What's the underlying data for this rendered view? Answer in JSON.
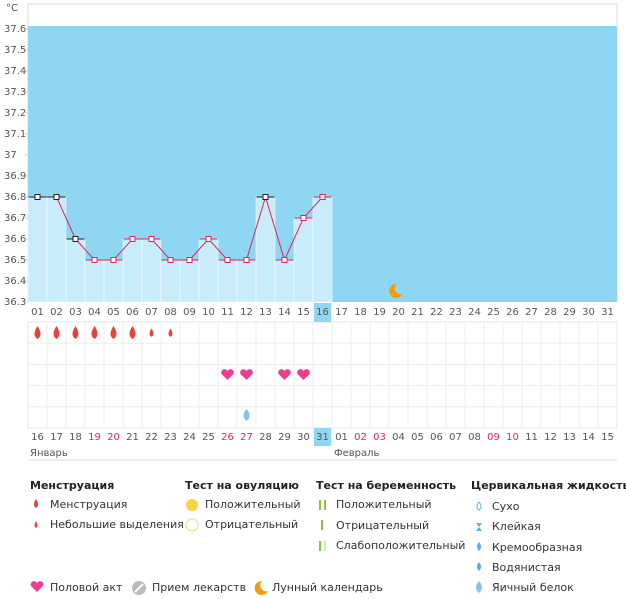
{
  "chart_data": {
    "type": "bar",
    "unit": "°C",
    "categories": [
      "01",
      "02",
      "03",
      "04",
      "05",
      "06",
      "07",
      "08",
      "09",
      "10",
      "11",
      "12",
      "13",
      "14",
      "15",
      "16",
      "17",
      "18",
      "19",
      "20",
      "21",
      "22",
      "23",
      "24",
      "25",
      "26",
      "27",
      "28",
      "29",
      "30",
      "31"
    ],
    "values": [
      36.8,
      36.8,
      36.6,
      36.5,
      36.5,
      36.6,
      36.6,
      36.5,
      36.5,
      36.6,
      36.5,
      36.5,
      36.8,
      36.5,
      36.7,
      36.8,
      null,
      null,
      null,
      null,
      null,
      null,
      null,
      null,
      null,
      null,
      null,
      null,
      null,
      null,
      null
    ],
    "marker_colors": [
      "#222",
      "#222",
      "#222",
      "#e0245e",
      "#e0245e",
      "#e0245e",
      "#e0245e",
      "#e0245e",
      "#e0245e",
      "#e0245e",
      "#e0245e",
      "#e0245e",
      "#222",
      "#e0245e",
      "#e0245e",
      "#e0245e",
      null,
      null,
      null,
      null,
      null,
      null,
      null,
      null,
      null,
      null,
      null,
      null,
      null,
      null,
      null
    ],
    "bar_color": "#c9ecfb",
    "background_color": "#8fd6f2",
    "line_color": "#e0245e",
    "ylim": [
      36.3,
      37.7
    ],
    "yticks": [
      36.3,
      36.4,
      36.5,
      36.6,
      36.7,
      36.8,
      36.9,
      37,
      37.1,
      37.2,
      37.3,
      37.4,
      37.5,
      37.6
    ],
    "today_index": 15,
    "moon_index": 19,
    "menstruation": [
      "heavy",
      "heavy",
      "heavy",
      "heavy",
      "heavy",
      "heavy",
      "light",
      "light",
      null,
      null,
      null,
      null,
      null,
      null,
      null,
      null,
      null,
      null,
      null,
      null,
      null,
      null,
      null,
      null,
      null,
      null,
      null,
      null,
      null,
      null,
      null
    ],
    "intercourse": [
      false,
      false,
      false,
      false,
      false,
      false,
      false,
      false,
      false,
      false,
      true,
      true,
      false,
      true,
      true,
      false,
      false,
      false,
      false,
      false,
      false,
      false,
      false,
      false,
      false,
      false,
      false,
      false,
      false,
      false,
      false
    ],
    "cervical_fluid": [
      null,
      null,
      null,
      null,
      null,
      null,
      null,
      null,
      null,
      null,
      null,
      "egg_white",
      null,
      null,
      null,
      null,
      null,
      null,
      null,
      null,
      null,
      null,
      null,
      null,
      null,
      null,
      null,
      null,
      null,
      null,
      null
    ],
    "calendar_dates": [
      "16",
      "17",
      "18",
      "19",
      "20",
      "21",
      "22",
      "23",
      "24",
      "25",
      "26",
      "27",
      "28",
      "29",
      "30",
      "31",
      "01",
      "02",
      "03",
      "04",
      "05",
      "06",
      "07",
      "08",
      "09",
      "10",
      "11",
      "12",
      "13",
      "14",
      "15"
    ],
    "weekend": [
      false,
      false,
      false,
      true,
      true,
      false,
      false,
      false,
      false,
      false,
      true,
      true,
      false,
      false,
      false,
      false,
      false,
      true,
      true,
      false,
      false,
      false,
      false,
      false,
      true,
      true,
      false,
      false,
      false,
      false,
      false
    ],
    "months": [
      "Январь",
      "Февраль"
    ]
  },
  "legend": {
    "menstruation": {
      "title": "Менструация",
      "items": [
        "Менструация",
        "Небольшие выделения"
      ]
    },
    "ovulation": {
      "title": "Тест на овуляцию",
      "items": [
        "Положительный",
        "Отрицательный"
      ]
    },
    "pregnancy": {
      "title": "Тест на беременность",
      "items": [
        "Положительный",
        "Отрицательный",
        "Слабоположительный"
      ]
    },
    "fluid": {
      "title": "Цервикальная жидкость",
      "items": [
        "Сухо",
        "Клейкая",
        "Кремообразная",
        "Водянистая",
        "Яичный белок"
      ]
    },
    "other": [
      "Половой акт",
      "Прием лекарств",
      "Лунный календарь"
    ]
  }
}
